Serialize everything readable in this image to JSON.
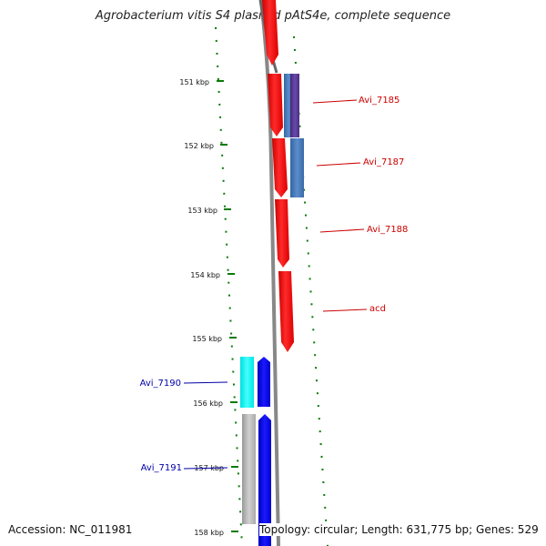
{
  "title": "Agrobacterium vitis S4 plasmid pAtS4e, complete sequence",
  "footer": {
    "accession": "Accession: NC_011981",
    "topology": "Topology: circular; Length: 631,775 bp; Genes: 529"
  },
  "ruler": {
    "unit": "kbp",
    "ticks": [
      "151 kbp",
      "152 kbp",
      "153 kbp",
      "154 kbp",
      "155 kbp",
      "156 kbp",
      "157 kbp",
      "158 kbp"
    ]
  },
  "genes": [
    {
      "name": "Avi_7185",
      "strand": "forward",
      "color": "#cc0000"
    },
    {
      "name": "Avi_7187",
      "strand": "forward",
      "color": "#cc0000"
    },
    {
      "name": "Avi_7188",
      "strand": "forward",
      "color": "#cc0000"
    },
    {
      "name": "acd",
      "strand": "forward",
      "color": "#cc0000"
    },
    {
      "name": "Avi_7190",
      "strand": "reverse",
      "color": "#0000aa"
    },
    {
      "name": "Avi_7191",
      "strand": "reverse",
      "color": "#0000aa"
    }
  ],
  "colors": {
    "forward_cds": "#ff1a1a",
    "reverse_cds": "#1010e0",
    "backbone": "#888888",
    "ticks": "#0a7a0a",
    "feature_cyan": "#22ffff",
    "feature_slate": "#4477bb",
    "feature_purple": "#553399",
    "feature_gray": "#b8b8b8"
  }
}
